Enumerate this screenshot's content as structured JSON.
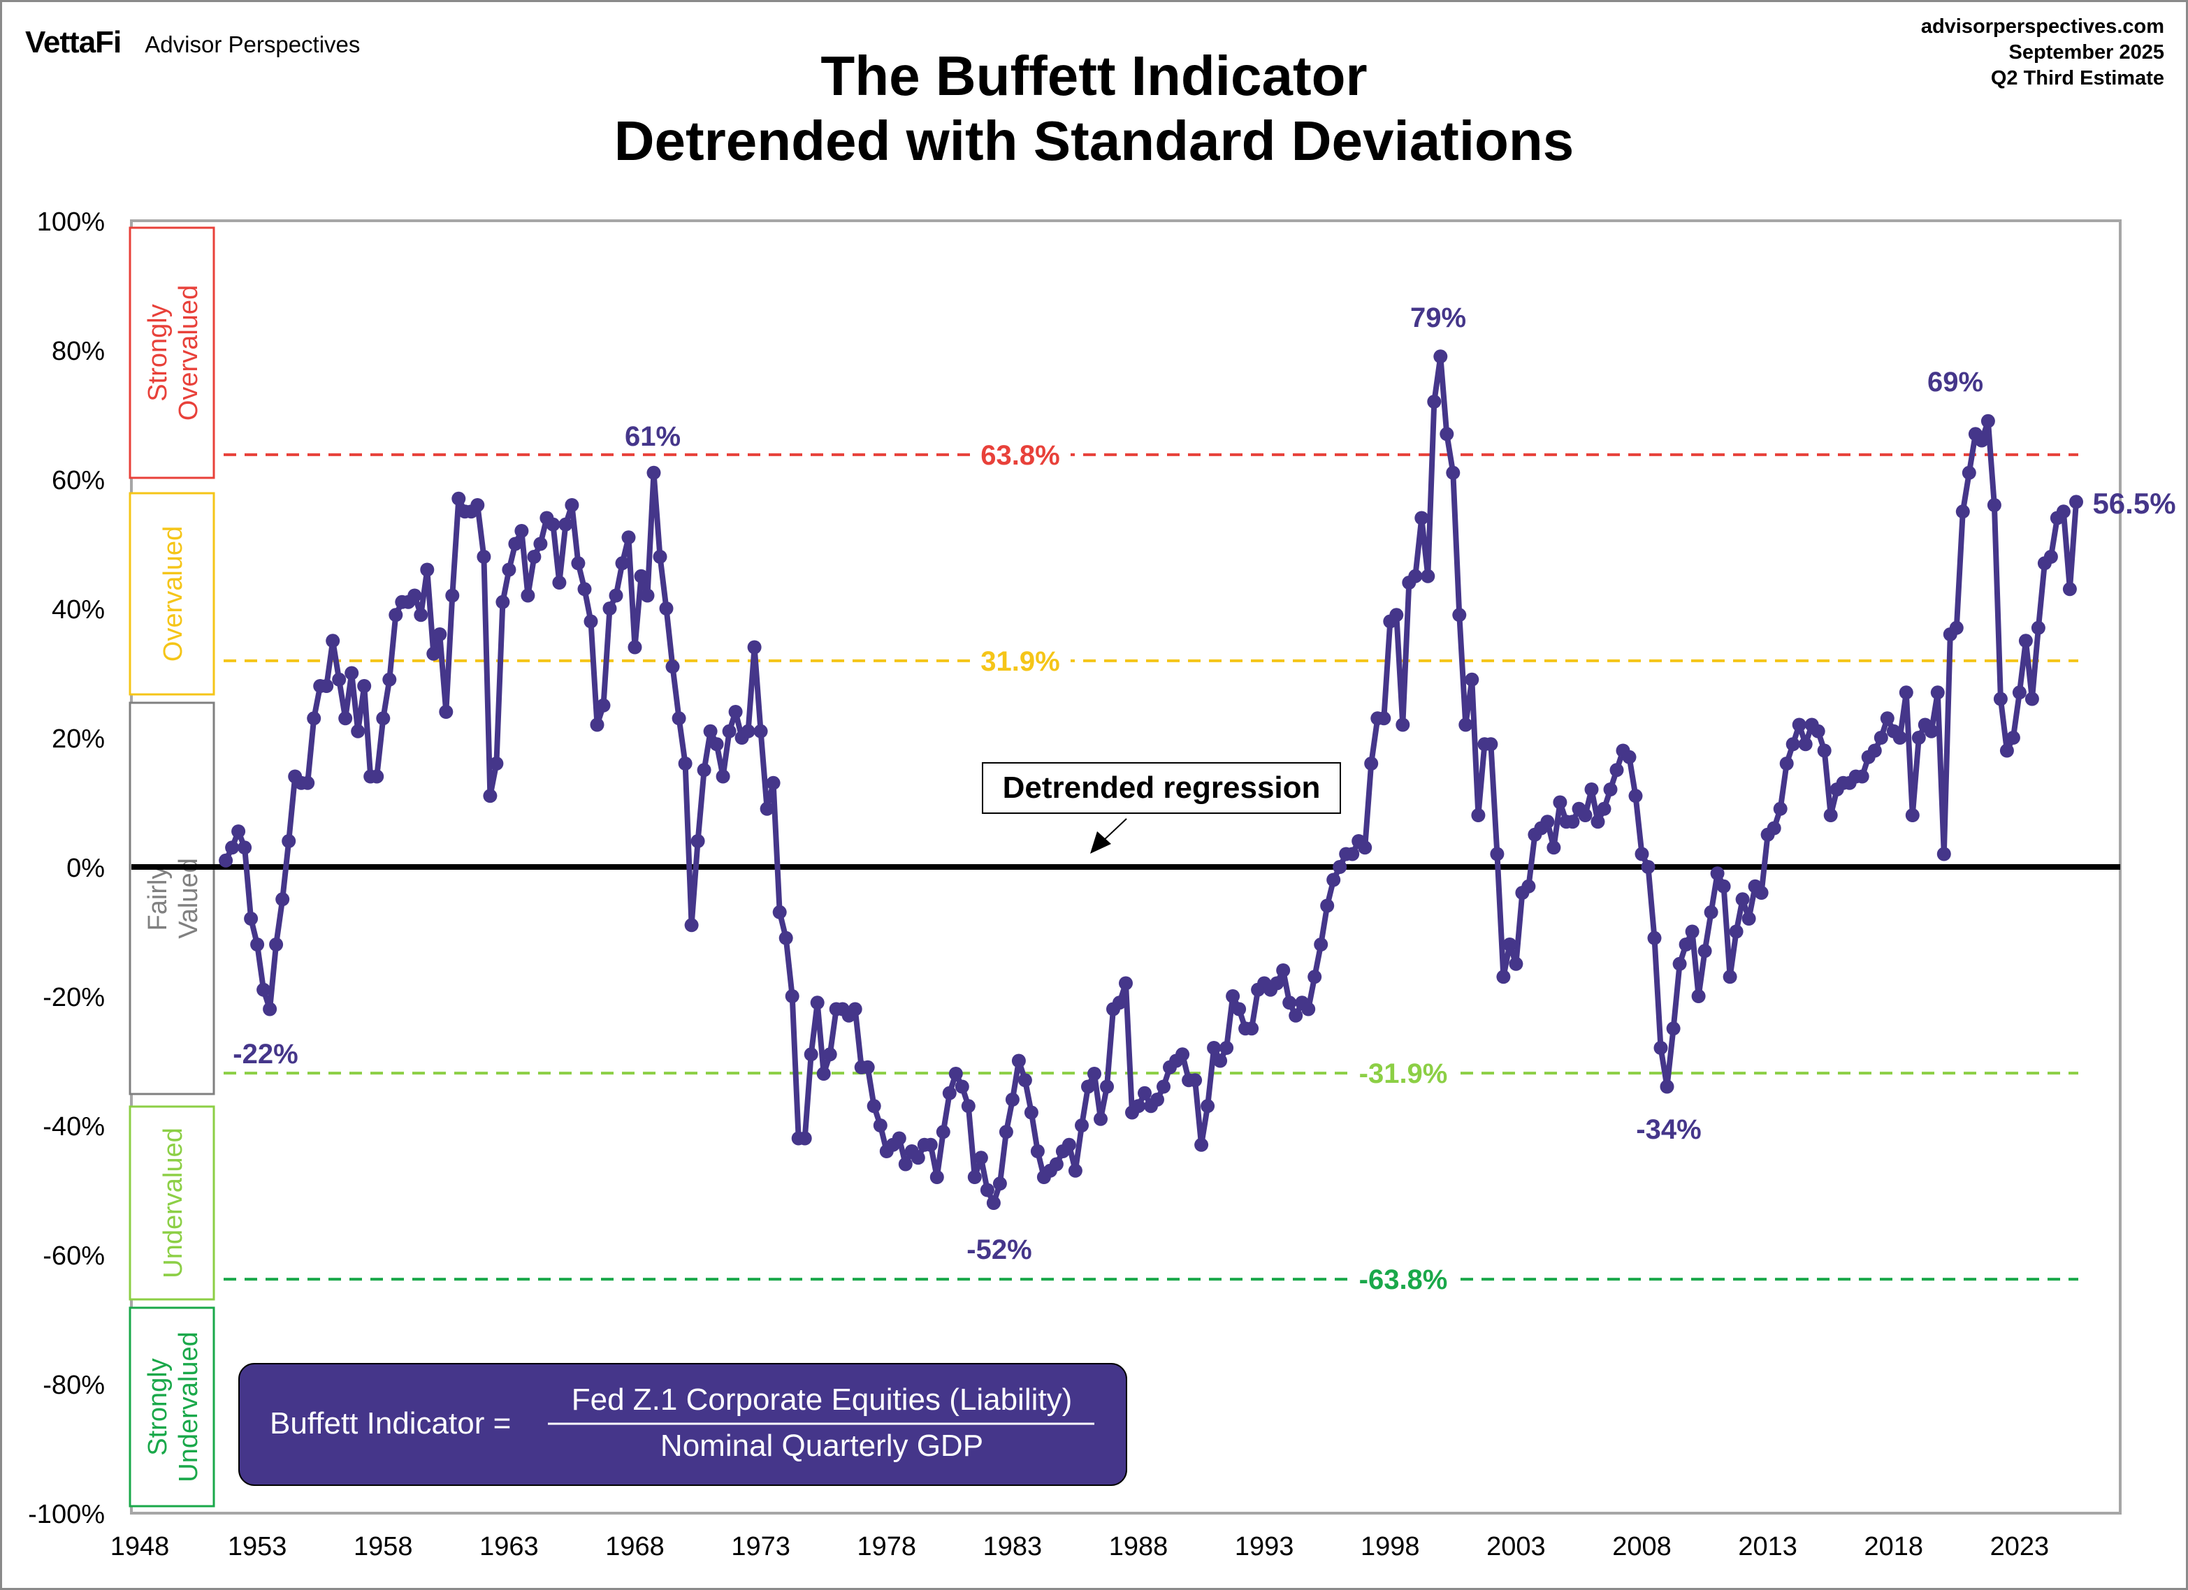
{
  "header": {
    "logo": "VettaFi",
    "brand": "Advisor Perspectives",
    "website": "advisorperspectives.com",
    "date": "September 2025",
    "estimate": "Q2 Third Estimate"
  },
  "chart_data": {
    "type": "line",
    "title": "The Buffett Indicator",
    "subtitle": "Detrended with Standard Deviations",
    "xlim": [
      1948,
      2027
    ],
    "ylim": [
      -100,
      100
    ],
    "x_ticks": [
      "1948",
      "1953",
      "1958",
      "1963",
      "1968",
      "1973",
      "1978",
      "1983",
      "1988",
      "1993",
      "1998",
      "2003",
      "2008",
      "2013",
      "2018",
      "2023"
    ],
    "y_ticks": [
      "100%",
      "80%",
      "60%",
      "40%",
      "20%",
      "0%",
      "-20%",
      "-40%",
      "-60%",
      "-80%",
      "-100%"
    ],
    "grid": false,
    "line_color": "#45368a",
    "quarterly_values_by_year": {
      "1951": [
        null,
        null,
        null,
        1
      ],
      "1952": [
        3,
        5.5,
        3,
        -8
      ],
      "1953": [
        -12,
        -19,
        -22,
        -12
      ],
      "1954": [
        -5,
        4,
        14,
        13
      ],
      "1955": [
        13,
        23,
        28,
        28
      ],
      "1956": [
        35,
        29,
        23,
        30
      ],
      "1957": [
        21,
        28,
        14,
        14
      ],
      "1958": [
        23,
        29,
        39,
        41
      ],
      "1959": [
        41,
        42,
        39,
        46
      ],
      "1960": [
        33,
        36,
        24,
        42
      ],
      "1961": [
        57,
        55,
        55,
        56
      ],
      "1962": [
        48,
        11,
        16,
        41
      ],
      "1963": [
        46,
        50,
        52,
        42
      ],
      "1964": [
        48,
        50,
        54,
        53
      ],
      "1965": [
        44,
        53,
        56,
        47
      ],
      "1966": [
        43,
        38,
        22,
        25
      ],
      "1967": [
        40,
        42,
        47,
        51
      ],
      "1968": [
        34,
        45,
        42,
        61
      ],
      "1969": [
        48,
        40,
        31,
        23
      ],
      "1970": [
        16,
        -9,
        4,
        15
      ],
      "1971": [
        21,
        19,
        14,
        21
      ],
      "1972": [
        24,
        20,
        21,
        34
      ],
      "1973": [
        21,
        9,
        13,
        -7
      ],
      "1974": [
        -11,
        -20,
        -42,
        -42
      ],
      "1975": [
        -29,
        -21,
        -32,
        -29
      ],
      "1976": [
        -22,
        -22,
        -23,
        -22
      ],
      "1977": [
        -31,
        -31,
        -37,
        -40
      ],
      "1978": [
        -44,
        -43,
        -42,
        -46
      ],
      "1979": [
        -44,
        -45,
        -43,
        -43
      ],
      "1980": [
        -48,
        -41,
        -35,
        -32
      ],
      "1981": [
        -34,
        -37,
        -48,
        -45
      ],
      "1982": [
        -50,
        -52,
        -49,
        -41
      ],
      "1983": [
        -36,
        -30,
        -33,
        -38
      ],
      "1984": [
        -44,
        -48,
        -47,
        -46
      ],
      "1985": [
        -44,
        -43,
        -47,
        -40
      ],
      "1986": [
        -34,
        -32,
        -39,
        -34
      ],
      "1987": [
        -22,
        -21,
        -18,
        -38
      ],
      "1988": [
        -37,
        -35,
        -37,
        -36
      ],
      "1989": [
        -34,
        -31,
        -30,
        -29
      ],
      "1990": [
        -33,
        -33,
        -43,
        -37
      ],
      "1991": [
        -28,
        -30,
        -28,
        -20
      ],
      "1992": [
        -22,
        -25,
        -25,
        -19
      ],
      "1993": [
        -18,
        -19,
        -18,
        -16
      ],
      "1994": [
        -21,
        -23,
        -21,
        -22
      ],
      "1995": [
        -17,
        -12,
        -6,
        -2
      ],
      "1996": [
        0,
        2,
        2,
        4
      ],
      "1997": [
        3,
        16,
        23,
        23
      ],
      "1998": [
        38,
        39,
        22,
        44
      ],
      "1999": [
        45,
        54,
        45,
        72
      ],
      "2000": [
        79,
        67,
        61,
        39
      ],
      "2001": [
        22,
        29,
        8,
        19
      ],
      "2002": [
        19,
        2,
        -17,
        -12
      ],
      "2003": [
        -15,
        -4,
        -3,
        5
      ],
      "2004": [
        6,
        7,
        3,
        10
      ],
      "2005": [
        7,
        7,
        9,
        8
      ],
      "2006": [
        12,
        7,
        9,
        12
      ],
      "2007": [
        15,
        18,
        17,
        11
      ],
      "2008": [
        2,
        0,
        -11,
        -28
      ],
      "2009": [
        -34,
        -25,
        -15,
        -12
      ],
      "2010": [
        -10,
        -20,
        -13,
        -7
      ],
      "2011": [
        -1,
        -3,
        -17,
        -10
      ],
      "2012": [
        -5,
        -8,
        -3,
        -4
      ],
      "2013": [
        5,
        6,
        9,
        16
      ],
      "2014": [
        19,
        22,
        19,
        22
      ],
      "2015": [
        21,
        18,
        8,
        12
      ],
      "2016": [
        13,
        13,
        14,
        14
      ],
      "2017": [
        17,
        18,
        20,
        23
      ],
      "2018": [
        21,
        20,
        27,
        8
      ],
      "2019": [
        20,
        22,
        21,
        27
      ],
      "2020": [
        2,
        36,
        37,
        55
      ],
      "2021": [
        61,
        67,
        66,
        69
      ],
      "2022": [
        56,
        26,
        18,
        20
      ],
      "2023": [
        27,
        35,
        26,
        37
      ],
      "2024": [
        47,
        48,
        54,
        55
      ],
      "2025": [
        43,
        56.5
      ]
    },
    "thresholds": [
      {
        "value": 63.8,
        "label": "63.8%",
        "color": "#e8413a"
      },
      {
        "value": 31.9,
        "label": "31.9%",
        "color": "#f5c518"
      },
      {
        "value": -31.9,
        "label": "-31.9%",
        "color": "#8ccf45"
      },
      {
        "value": -63.8,
        "label": "-63.8%",
        "color": "#1aa84a"
      }
    ],
    "regression": {
      "value": 0,
      "label": "Detrended regression"
    },
    "annotations": {
      "peak_1968": "61%",
      "peak_2000": "79%",
      "peak_2021": "69%",
      "latest": "56.5%",
      "low_1953": "-22%",
      "low_1982": "-52%",
      "low_2009": "-34%"
    },
    "zones": [
      {
        "label": "Strongly Overvalued",
        "color": "#e8413a"
      },
      {
        "label": "Overvalued",
        "color": "#f5c518"
      },
      {
        "label": "Fairly Valued",
        "color": "#808080"
      },
      {
        "label": "Undervalued",
        "color": "#8ccf45"
      },
      {
        "label": "Strongly Undervalued",
        "color": "#1aa84a"
      }
    ],
    "formula": {
      "lhs": "Buffett Indicator =",
      "numerator": "Fed Z.1 Corporate Equities (Liability)",
      "denominator": "Nominal Quarterly GDP"
    }
  }
}
